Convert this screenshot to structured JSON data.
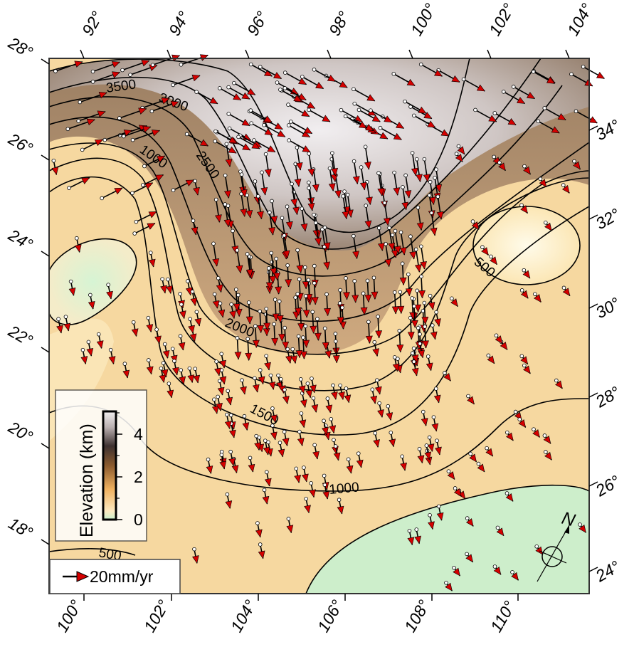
{
  "map": {
    "x_tick_labels": [
      "100°",
      "102°",
      "104°",
      "106°",
      "108°",
      "110°"
    ],
    "y_tick_labels_left": [
      "18°",
      "20°",
      "22°",
      "24°",
      "26°",
      "28°"
    ],
    "x_tick_labels_top": [
      "92°",
      "94°",
      "96°",
      "98°",
      "100°",
      "102°",
      "104°"
    ],
    "y_tick_labels_right": [
      "24°",
      "26°",
      "28°",
      "30°",
      "32°",
      "34°"
    ],
    "contour_labels": [
      "3500",
      "3000",
      "2500",
      "2000",
      "1500",
      "1000",
      "1000",
      "500",
      "500"
    ],
    "colors": {
      "low": "#c9f0cc",
      "mid_low": "#fbe2b0",
      "mid": "#f2c484",
      "brown": "#8b6a4e",
      "high": "#ece7ea",
      "velocity_arrow": "#d40000",
      "velocity_head": "#cc0000"
    }
  },
  "colorbar": {
    "title": "Elevation (km)",
    "ticks": [
      "4",
      "2",
      "0"
    ]
  },
  "velocity_legend": {
    "label": "20mm/yr"
  },
  "compass": {
    "label": "N",
    "icon": "north-arrow-icon"
  }
}
